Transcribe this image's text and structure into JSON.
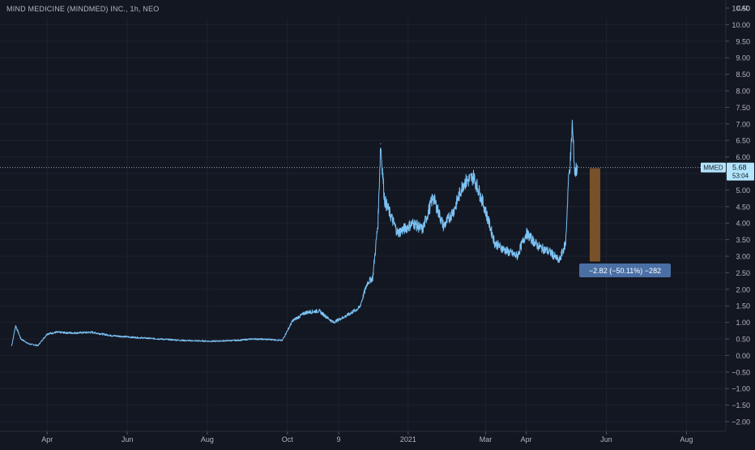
{
  "header": {
    "title": "MIND MEDICINE (MINDMED) INC., 1h, NEO"
  },
  "colors": {
    "background": "#131722",
    "grid": "#1e222d",
    "line": "#7cc3f5",
    "axis_text": "#b2b5be",
    "price_line": "#9aa0ab",
    "measure_box": "#2962ff",
    "measure_bar": "#8b5a2b"
  },
  "chart_data": {
    "type": "line",
    "currency": "CAD",
    "y_ticks": [
      "10.50",
      "10.00",
      "9.50",
      "9.00",
      "8.50",
      "8.00",
      "7.50",
      "7.00",
      "6.50",
      "6.00",
      "5.50",
      "5.00",
      "4.50",
      "4.00",
      "3.50",
      "3.00",
      "2.50",
      "2.00",
      "1.50",
      "1.00",
      "0.50",
      "0.00",
      "−0.50",
      "−1.00",
      "−1.50",
      "−2.00"
    ],
    "x_ticks": [
      "Apr",
      "Jun",
      "Aug",
      "Oct",
      "9",
      "2021",
      "Mar",
      "Apr",
      "Jun",
      "Aug"
    ],
    "ylim": [
      -2.1,
      10.5
    ],
    "xlim": [
      "2020-03-01",
      "2021-08-31"
    ],
    "grid": true,
    "series": [
      {
        "name": "MMED",
        "x": [
          "2020-03-05",
          "2020-03-08",
          "2020-03-12",
          "2020-03-18",
          "2020-03-25",
          "2020-04-01",
          "2020-04-08",
          "2020-04-20",
          "2020-05-05",
          "2020-05-20",
          "2020-06-05",
          "2020-06-25",
          "2020-07-15",
          "2020-08-05",
          "2020-08-25",
          "2020-09-05",
          "2020-09-20",
          "2020-09-27",
          "2020-10-05",
          "2020-10-15",
          "2020-10-25",
          "2020-11-05",
          "2020-11-15",
          "2020-11-25",
          "2020-12-01",
          "2020-12-05",
          "2020-12-09",
          "2020-12-11",
          "2020-12-14",
          "2020-12-18",
          "2020-12-24",
          "2021-01-05",
          "2021-01-12",
          "2021-01-20",
          "2021-01-28",
          "2021-02-05",
          "2021-02-12",
          "2021-02-20",
          "2021-02-28",
          "2021-03-08",
          "2021-03-15",
          "2021-03-25",
          "2021-04-01",
          "2021-04-10",
          "2021-04-20",
          "2021-04-26",
          "2021-05-01",
          "2021-05-03",
          "2021-05-05",
          "2021-05-06",
          "2021-05-08",
          "2021-05-10"
        ],
        "y": [
          0.3,
          0.9,
          0.5,
          0.35,
          0.3,
          0.65,
          0.7,
          0.68,
          0.7,
          0.6,
          0.55,
          0.5,
          0.45,
          0.43,
          0.46,
          0.5,
          0.48,
          0.45,
          1.05,
          1.3,
          1.35,
          1.0,
          1.2,
          1.45,
          2.2,
          2.35,
          4.0,
          6.4,
          4.7,
          4.3,
          3.7,
          4.0,
          3.8,
          4.8,
          3.9,
          4.4,
          5.2,
          5.4,
          4.5,
          3.4,
          3.2,
          3.0,
          3.7,
          3.3,
          3.1,
          2.85,
          3.4,
          5.2,
          6.1,
          7.0,
          5.5,
          5.7
        ]
      }
    ],
    "last_price": {
      "label": "MMED",
      "value": "5.68",
      "countdown": "53:04",
      "y": 5.68
    },
    "measure": {
      "text": "−2.82 (−50.11%) −282",
      "from": 5.66,
      "to": 2.84,
      "date": "2021-05-23"
    },
    "xlabel": "",
    "ylabel": ""
  }
}
